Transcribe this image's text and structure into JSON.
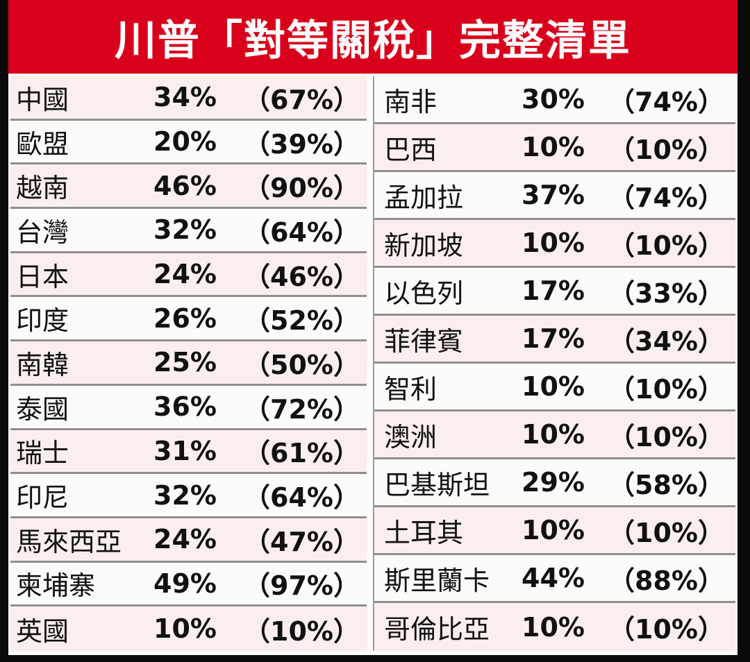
{
  "title": "川普「對等關稅」完整清單",
  "colors": {
    "header_bg": "#d9001b",
    "alt_row_bg": "#fbeeee"
  },
  "left_column": [
    {
      "country": "中國",
      "rate": "34%",
      "reciprocal": "（67%）"
    },
    {
      "country": "歐盟",
      "rate": "20%",
      "reciprocal": "（39%）"
    },
    {
      "country": "越南",
      "rate": "46%",
      "reciprocal": "（90%）"
    },
    {
      "country": "台灣",
      "rate": "32%",
      "reciprocal": "（64%）"
    },
    {
      "country": "日本",
      "rate": "24%",
      "reciprocal": "（46%）"
    },
    {
      "country": "印度",
      "rate": "26%",
      "reciprocal": "（52%）"
    },
    {
      "country": "南韓",
      "rate": "25%",
      "reciprocal": "（50%）"
    },
    {
      "country": "泰國",
      "rate": "36%",
      "reciprocal": "（72%）"
    },
    {
      "country": "瑞士",
      "rate": "31%",
      "reciprocal": "（61%）"
    },
    {
      "country": "印尼",
      "rate": "32%",
      "reciprocal": "（64%）"
    },
    {
      "country": "馬來西亞",
      "rate": "24%",
      "reciprocal": "（47%）"
    },
    {
      "country": "柬埔寨",
      "rate": "49%",
      "reciprocal": "（97%）"
    },
    {
      "country": "英國",
      "rate": "10%",
      "reciprocal": "（10%）"
    }
  ],
  "right_column": [
    {
      "country": "南非",
      "rate": "30%",
      "reciprocal": "（74%）"
    },
    {
      "country": "巴西",
      "rate": "10%",
      "reciprocal": "（10%）"
    },
    {
      "country": "孟加拉",
      "rate": "37%",
      "reciprocal": "（74%）"
    },
    {
      "country": "新加坡",
      "rate": "10%",
      "reciprocal": "（10%）"
    },
    {
      "country": "以色列",
      "rate": "17%",
      "reciprocal": "（33%）"
    },
    {
      "country": "菲律賓",
      "rate": "17%",
      "reciprocal": "（34%）"
    },
    {
      "country": "智利",
      "rate": "10%",
      "reciprocal": "（10%）"
    },
    {
      "country": "澳洲",
      "rate": "10%",
      "reciprocal": "（10%）"
    },
    {
      "country": "巴基斯坦",
      "rate": "29%",
      "reciprocal": "（58%）"
    },
    {
      "country": "土耳其",
      "rate": "10%",
      "reciprocal": "（10%）"
    },
    {
      "country": "斯里蘭卡",
      "rate": "44%",
      "reciprocal": "（88%）"
    },
    {
      "country": "哥倫比亞",
      "rate": "10%",
      "reciprocal": "（10%）"
    }
  ]
}
